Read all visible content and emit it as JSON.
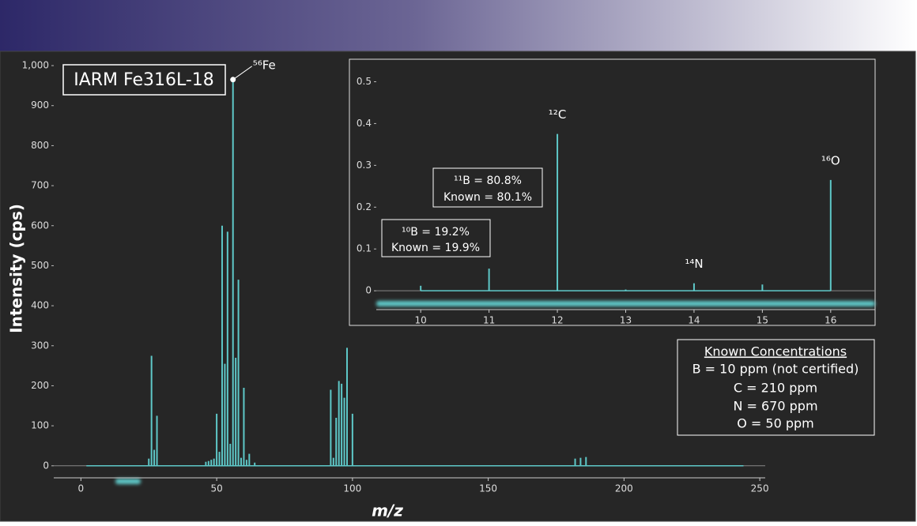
{
  "chart_data": [
    {
      "type": "stem",
      "title": "IARM Fe316L-18",
      "x_label": "m/z",
      "y_label": "Intensity (cps)",
      "color": "#5ec8c8",
      "x": [
        2,
        25,
        26,
        27,
        28,
        46,
        47,
        48,
        49,
        50,
        51,
        52,
        53,
        54,
        55,
        56,
        57,
        58,
        59,
        60,
        61,
        62,
        64,
        92,
        93,
        94,
        95,
        96,
        97,
        98,
        100,
        182,
        184,
        186,
        244
      ],
      "values": [
        0,
        18,
        275,
        40,
        125,
        10,
        12,
        15,
        18,
        130,
        35,
        600,
        255,
        585,
        55,
        965,
        270,
        465,
        20,
        195,
        15,
        30,
        8,
        190,
        20,
        120,
        212,
        205,
        170,
        295,
        130,
        18,
        20,
        22,
        0
      ],
      "labels": [
        null,
        null,
        null,
        null,
        null,
        null,
        null,
        null,
        null,
        null,
        null,
        null,
        null,
        null,
        null,
        "⁵⁶Fe",
        null,
        null,
        null,
        null,
        null,
        null,
        null,
        null,
        null,
        null,
        null,
        null,
        null,
        null,
        null,
        null,
        null,
        null,
        null
      ],
      "xlim": [
        -10,
        252
      ],
      "xticks": [
        0,
        50,
        100,
        150,
        200,
        250
      ],
      "ylim": [
        -30,
        1010
      ],
      "yticks": [
        0,
        100,
        200,
        300,
        400,
        500,
        600,
        700,
        800,
        900,
        {
          "value": 1000,
          "label": "1,000"
        }
      ],
      "note": {
        "title": "Known Concentrations",
        "lines": [
          "B = 10 ppm (not certified)",
          "C = 210 ppm",
          "N = 670 ppm",
          "O = 50 ppm"
        ]
      }
    },
    {
      "type": "stem",
      "color": "#5ec8c8",
      "x": [
        10,
        11,
        12,
        13,
        14,
        15,
        16
      ],
      "values": [
        0.012,
        0.053,
        0.375,
        0.003,
        0.018,
        0.015,
        0.265
      ],
      "labels": [
        null,
        null,
        "¹²C",
        null,
        "¹⁴N",
        null,
        "¹⁶O"
      ],
      "xlim": [
        9.35,
        16.65
      ],
      "xticks": [
        10,
        11,
        12,
        13,
        14,
        15,
        16
      ],
      "ylim": [
        -0.045,
        0.55
      ],
      "yticks": [
        0,
        0.1,
        0.2,
        0.3,
        0.4,
        0.5
      ],
      "notes": [
        [
          "¹⁰B = 19.2%",
          "Known = 19.9%"
        ],
        [
          "¹¹B = 80.8%",
          "Known = 80.1%"
        ]
      ]
    }
  ]
}
